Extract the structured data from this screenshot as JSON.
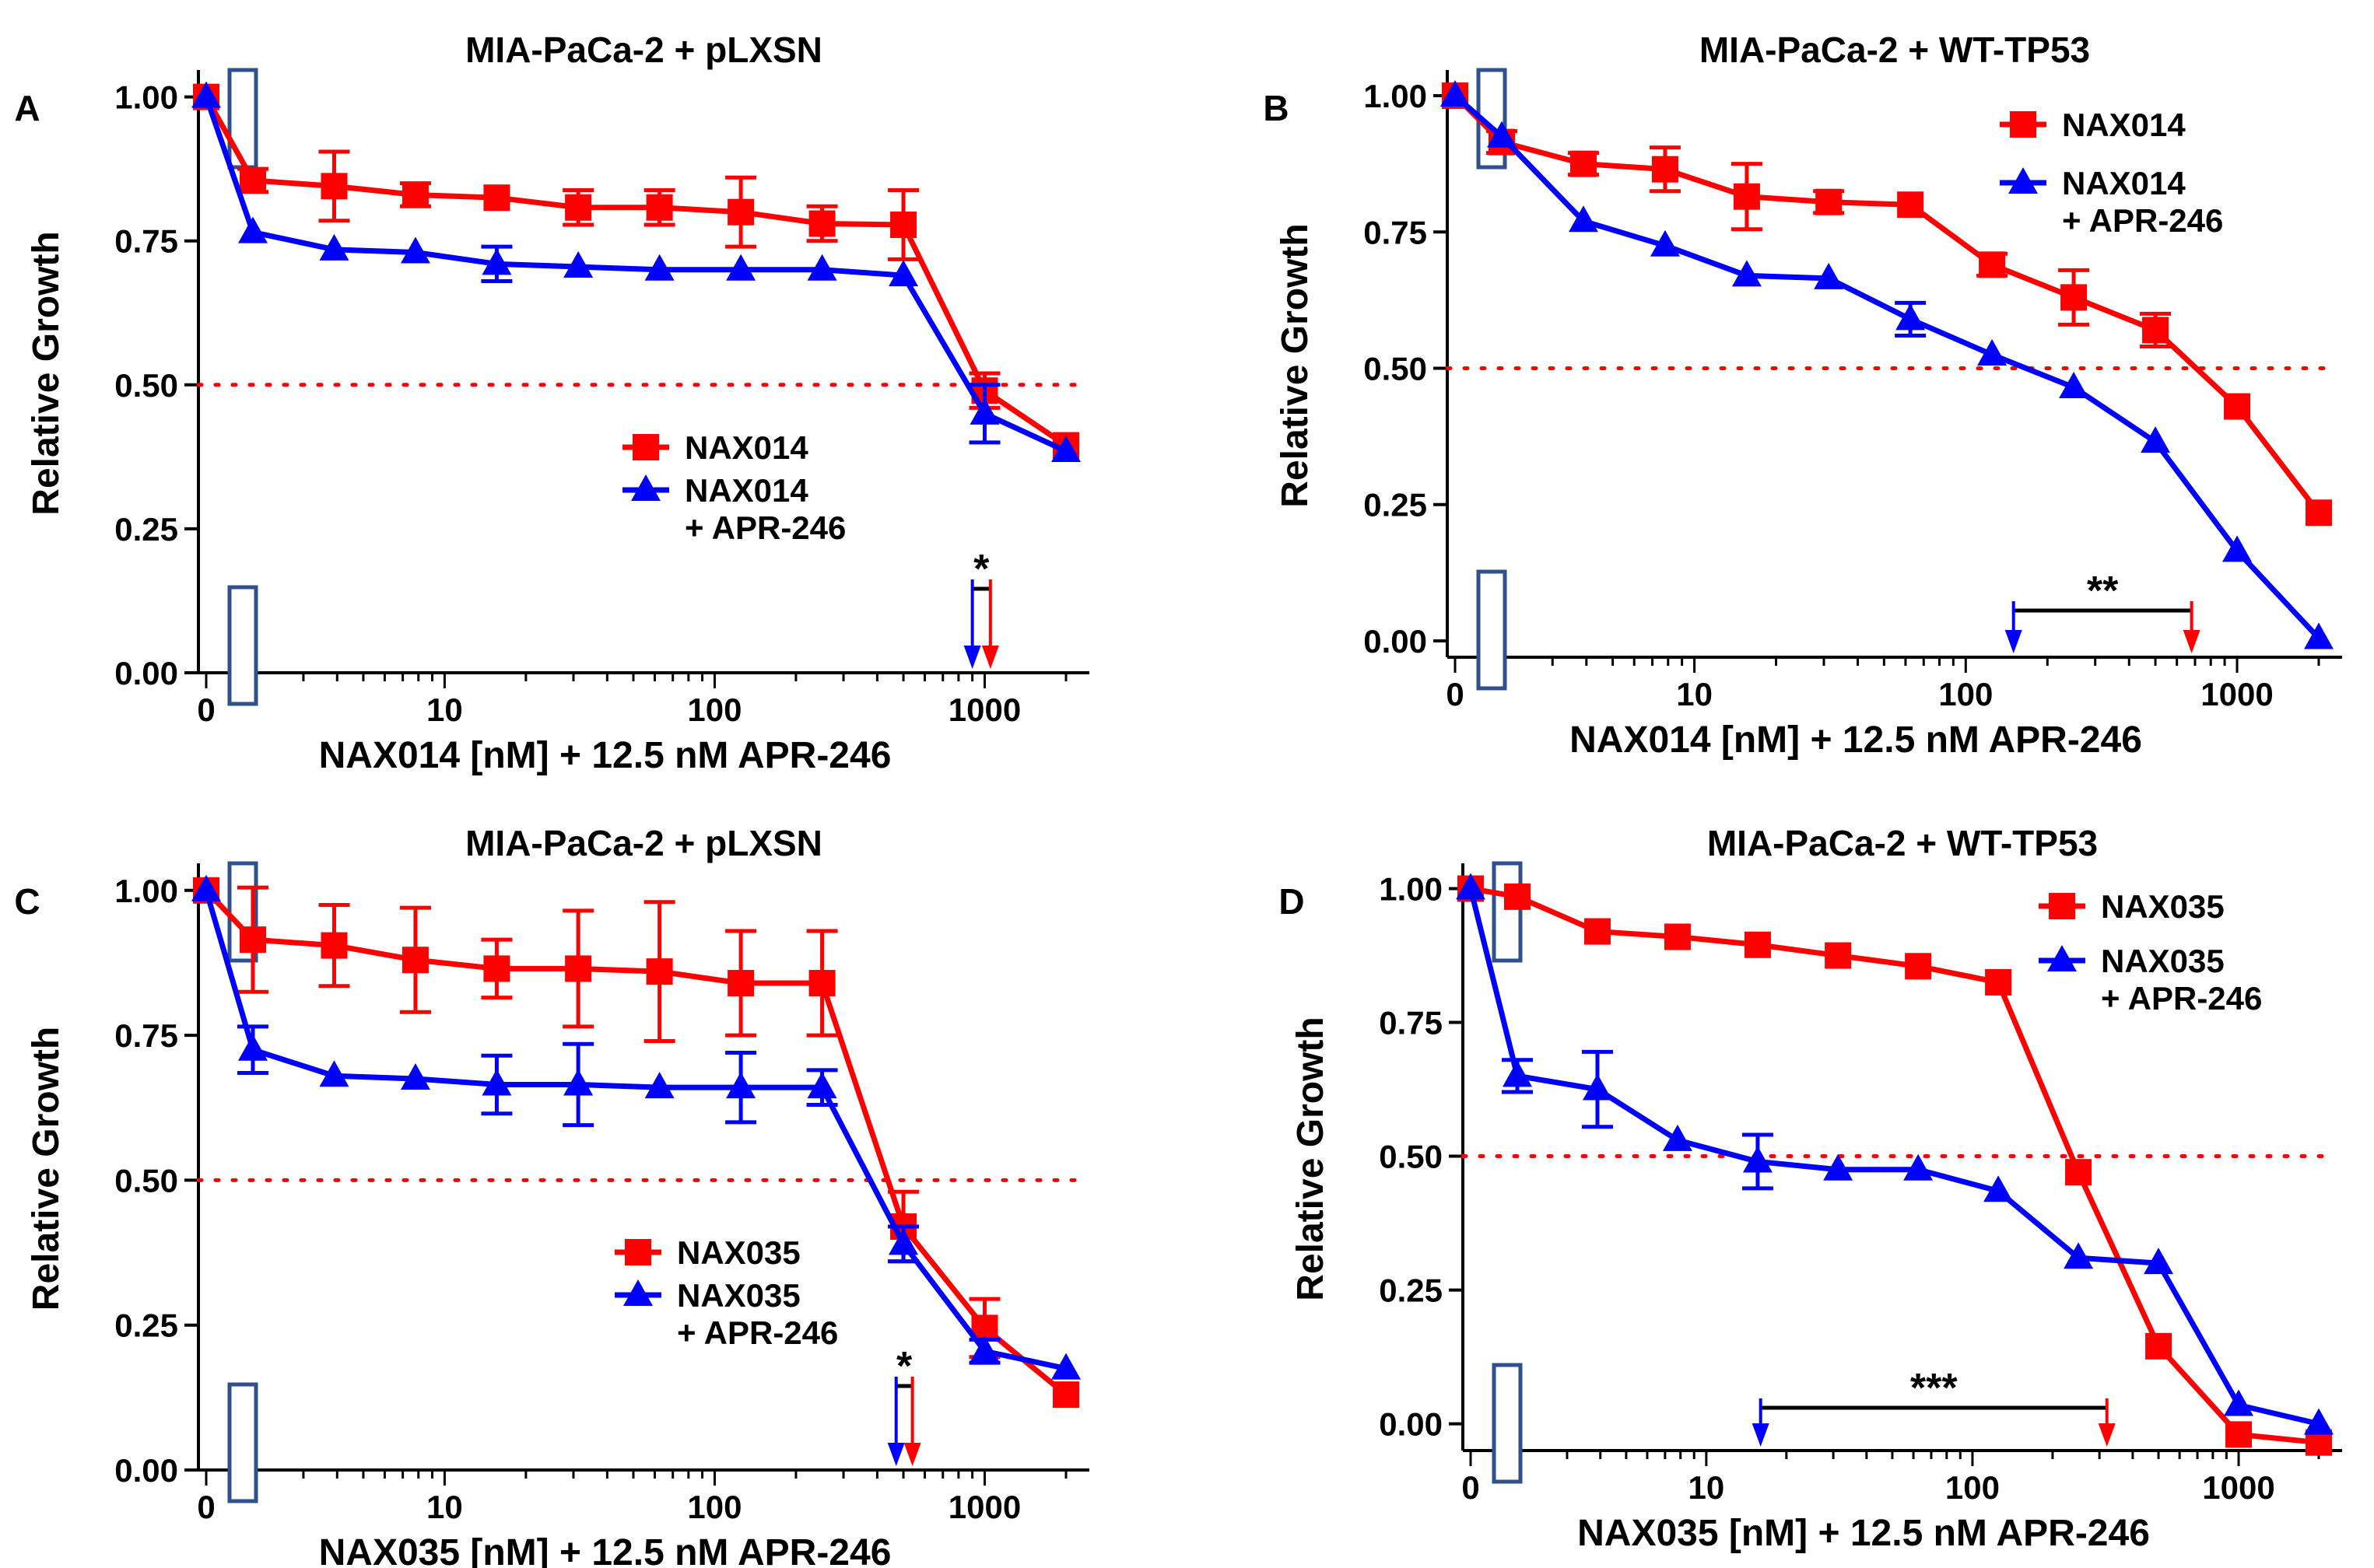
{
  "colors": {
    "red": "#ff0000",
    "blue": "#0000ff",
    "axis": "#000000",
    "box": "#2f4f8f"
  },
  "chart_data": [
    {
      "type": "line",
      "panel_label": "A",
      "title": "MIA-PaCa-2 + pLXSN",
      "xlabel": "NAX014 [nM] + 12.5 nM APR-246",
      "ylabel": "Relative Growth",
      "xscale": "log with zero",
      "ylim": [
        0,
        1.04
      ],
      "yticks": [
        "0.00",
        "0.25",
        "0.50",
        "0.75",
        "1.00"
      ],
      "xticks": [
        "0",
        "10",
        "100",
        "1000"
      ],
      "ic50_line": 0.5,
      "x": [
        0,
        1.95,
        3.9,
        7.8,
        15.6,
        31.25,
        62.5,
        125,
        250,
        500,
        1000,
        2000
      ],
      "series": [
        {
          "name": "NAX014",
          "color": "red",
          "marker": "square",
          "values": [
            1.0,
            0.855,
            0.845,
            0.83,
            0.825,
            0.808,
            0.808,
            0.8,
            0.78,
            0.778,
            0.49,
            0.395
          ],
          "errors": [
            0,
            0.02,
            0.06,
            0.02,
            0.01,
            0.03,
            0.03,
            0.06,
            0.03,
            0.06,
            0.03,
            0.01
          ]
        },
        {
          "name": "NAX014",
          "name2": "+ APR-246",
          "color": "blue",
          "marker": "triangle",
          "values": [
            1.0,
            0.765,
            0.735,
            0.73,
            0.71,
            0.705,
            0.7,
            0.7,
            0.7,
            0.69,
            0.45,
            0.385
          ],
          "errors": [
            0,
            0.01,
            0.01,
            0.01,
            0.03,
            0.01,
            0.01,
            0.01,
            0.01,
            0.01,
            0.05,
            0.01
          ]
        }
      ],
      "legend": "lower-center",
      "significance": {
        "label": "*",
        "x_start": 900,
        "x_end": 1050
      }
    },
    {
      "type": "line",
      "panel_label": "B",
      "title": "MIA-PaCa-2 + WT-TP53",
      "xlabel": "NAX014 [nM] + 12.5 nM APR-246",
      "ylabel": "Relative Growth",
      "xscale": "log with zero",
      "ylim": [
        -0.03,
        1.04
      ],
      "yticks": [
        "0.00",
        "0.25",
        "0.50",
        "0.75",
        "1.00"
      ],
      "xticks": [
        "0",
        "10",
        "100",
        "1000"
      ],
      "ic50_line": 0.5,
      "x": [
        0,
        1.95,
        3.9,
        7.8,
        15.6,
        31.25,
        62.5,
        125,
        250,
        500,
        1000,
        2000
      ],
      "series": [
        {
          "name": "NAX014",
          "color": "red",
          "marker": "square",
          "values": [
            1.0,
            0.915,
            0.875,
            0.865,
            0.815,
            0.805,
            0.8,
            0.69,
            0.63,
            0.57,
            0.43,
            0.235
          ],
          "errors": [
            0,
            0.02,
            0.02,
            0.04,
            0.06,
            0.02,
            0.01,
            0.02,
            0.05,
            0.03,
            0.01,
            0.01
          ]
        },
        {
          "name": "NAX014",
          "name2": "+ APR-246",
          "color": "blue",
          "marker": "triangle",
          "values": [
            1.0,
            0.925,
            0.77,
            0.725,
            0.67,
            0.665,
            0.59,
            0.525,
            0.465,
            0.365,
            0.165,
            0.005
          ],
          "errors": [
            0,
            0.01,
            0.01,
            0.01,
            0.01,
            0.01,
            0.03,
            0.01,
            0.01,
            0.01,
            0.01,
            0.01
          ]
        }
      ],
      "legend": "top-right",
      "significance": {
        "label": "**",
        "x_start": 150,
        "x_end": 680
      }
    },
    {
      "type": "line",
      "panel_label": "C",
      "title": "MIA-PaCa-2 + pLXSN",
      "xlabel": "NAX035 [nM] + 12.5 nM APR-246",
      "ylabel": "Relative Growth",
      "xscale": "log with zero",
      "ylim": [
        0,
        1.04
      ],
      "yticks": [
        "0.00",
        "0.25",
        "0.50",
        "0.75",
        "1.00"
      ],
      "xticks": [
        "0",
        "10",
        "100",
        "1000"
      ],
      "ic50_line": 0.5,
      "x": [
        0,
        1.95,
        3.9,
        7.8,
        15.6,
        31.25,
        62.5,
        125,
        250,
        500,
        1000,
        2000
      ],
      "series": [
        {
          "name": "NAX035",
          "color": "red",
          "marker": "square",
          "values": [
            1.0,
            0.915,
            0.905,
            0.88,
            0.865,
            0.865,
            0.86,
            0.84,
            0.84,
            0.42,
            0.245,
            0.13
          ],
          "errors": [
            0,
            0.09,
            0.07,
            0.09,
            0.05,
            0.1,
            0.12,
            0.09,
            0.09,
            0.06,
            0.05,
            0.01
          ]
        },
        {
          "name": "NAX035",
          "name2": "+ APR-246",
          "color": "blue",
          "marker": "triangle",
          "values": [
            1.0,
            0.725,
            0.68,
            0.675,
            0.665,
            0.665,
            0.66,
            0.66,
            0.66,
            0.39,
            0.205,
            0.175
          ],
          "errors": [
            0,
            0.04,
            0.01,
            0.01,
            0.05,
            0.07,
            0.01,
            0.06,
            0.03,
            0.03,
            0.02,
            0.01
          ]
        }
      ],
      "legend": "lower-center",
      "significance": {
        "label": "*",
        "x_start": 470,
        "x_end": 540
      }
    },
    {
      "type": "line",
      "panel_label": "D",
      "title": "MIA-PaCa-2 + WT-TP53",
      "xlabel": "NAX035 [nM] + 12.5 nM APR-246",
      "ylabel": "Relative Growth",
      "xscale": "log with zero",
      "ylim": [
        -0.05,
        1.04
      ],
      "yticks": [
        "0.00",
        "0.25",
        "0.50",
        "0.75",
        "1.00"
      ],
      "xticks": [
        "0",
        "10",
        "100",
        "1000"
      ],
      "ic50_line": 0.5,
      "x": [
        0,
        1.95,
        3.9,
        7.8,
        15.6,
        31.25,
        62.5,
        125,
        250,
        500,
        1000,
        2000
      ],
      "series": [
        {
          "name": "NAX035",
          "color": "red",
          "marker": "square",
          "values": [
            1.0,
            0.985,
            0.92,
            0.91,
            0.895,
            0.875,
            0.855,
            0.825,
            0.47,
            0.145,
            -0.02,
            -0.035
          ],
          "errors": [
            0,
            0.01,
            0.01,
            0.01,
            0.01,
            0.01,
            0.01,
            0.01,
            0.01,
            0.01,
            0.01,
            0.01
          ]
        },
        {
          "name": "NAX035",
          "name2": "+ APR-246",
          "color": "blue",
          "marker": "triangle",
          "values": [
            1.0,
            0.65,
            0.625,
            0.53,
            0.49,
            0.475,
            0.475,
            0.435,
            0.31,
            0.3,
            0.035,
            0.0
          ],
          "errors": [
            0,
            0.03,
            0.07,
            0.01,
            0.05,
            0.01,
            0.01,
            0.01,
            0.01,
            0.01,
            0.01,
            0.01
          ]
        }
      ],
      "legend": "top-right",
      "significance": {
        "label": "***",
        "x_start": 16,
        "x_end": 320
      }
    }
  ]
}
